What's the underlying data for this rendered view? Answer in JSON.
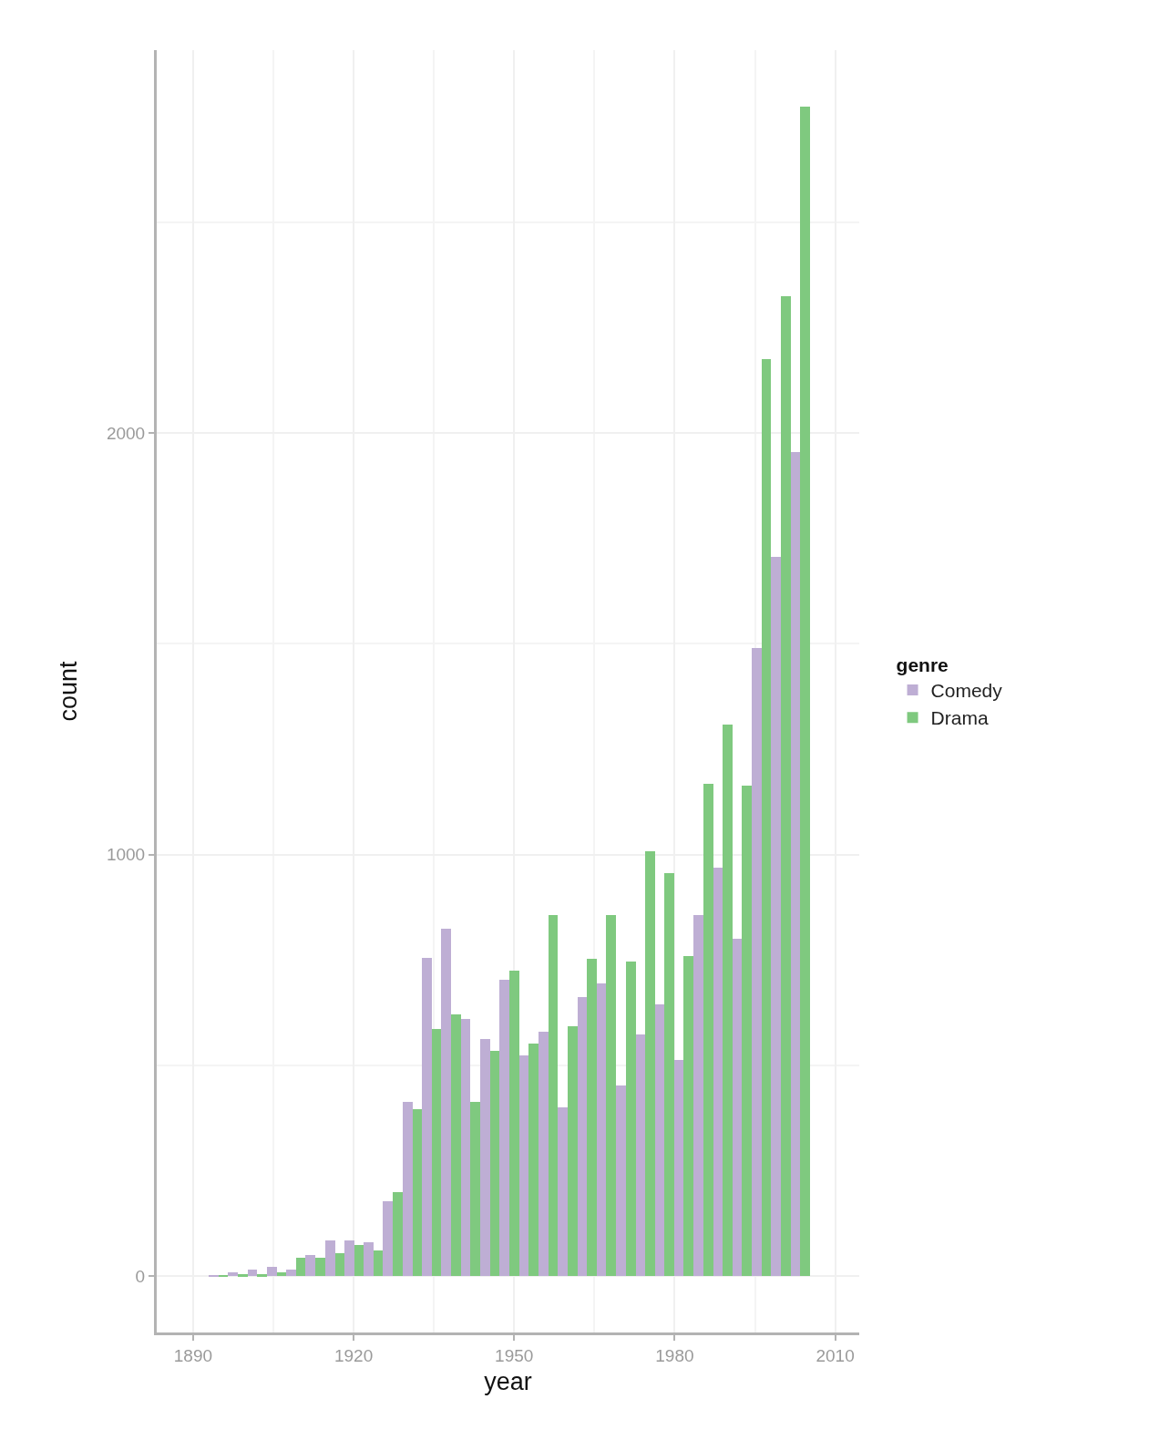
{
  "chart_data": {
    "type": "histogram",
    "xlabel": "year",
    "ylabel": "count",
    "legend_title": "genre",
    "legend": "right",
    "grid": true,
    "bins": [
      1892.9,
      1896.5,
      1900.2,
      1903.8,
      1907.4,
      1911.0,
      1914.7,
      1918.3,
      1921.9,
      1925.5,
      1929.2,
      1932.8,
      1936.4,
      1940.0,
      1943.7,
      1947.3,
      1950.9,
      1954.5,
      1958.2,
      1961.8,
      1965.4,
      1969.0,
      1972.7,
      1976.3,
      1979.9,
      1983.5,
      1987.2,
      1990.8,
      1994.4,
      1998.0,
      2001.7,
      2005.3
    ],
    "series": [
      {
        "name": "Comedy",
        "color": "#beaed4",
        "values": [
          2,
          9,
          15,
          22,
          15,
          50,
          84,
          84,
          79,
          177,
          413,
          754,
          823,
          610,
          563,
          702,
          523,
          580,
          401,
          661,
          695,
          453,
          574,
          644,
          512,
          857,
          968,
          800,
          1490,
          1705,
          1955
        ]
      },
      {
        "name": "Drama",
        "color": "#7fc97f",
        "values": [
          2,
          4,
          4,
          9,
          44,
          44,
          55,
          73,
          61,
          200,
          396,
          586,
          621,
          413,
          534,
          724,
          551,
          857,
          592,
          753,
          857,
          747,
          1008,
          956,
          760,
          1168,
          1308,
          1163,
          2175,
          2325,
          2775
        ]
      }
    ],
    "xlim": [
      1883.2,
      2014.5
    ],
    "xticks": [
      1890,
      {
        "value": 1905,
        "label": null
      },
      1920,
      {
        "value": 1935,
        "label": null
      },
      1950,
      {
        "value": 1965,
        "label": null
      },
      1980,
      {
        "value": 1995,
        "label": null
      },
      2010
    ],
    "ylim": [
      -134,
      2908
    ],
    "yticks": [
      0,
      {
        "value": 500,
        "label": null
      },
      1000,
      {
        "value": 1500,
        "label": null
      },
      2000,
      {
        "value": 2500,
        "label": null
      }
    ]
  }
}
